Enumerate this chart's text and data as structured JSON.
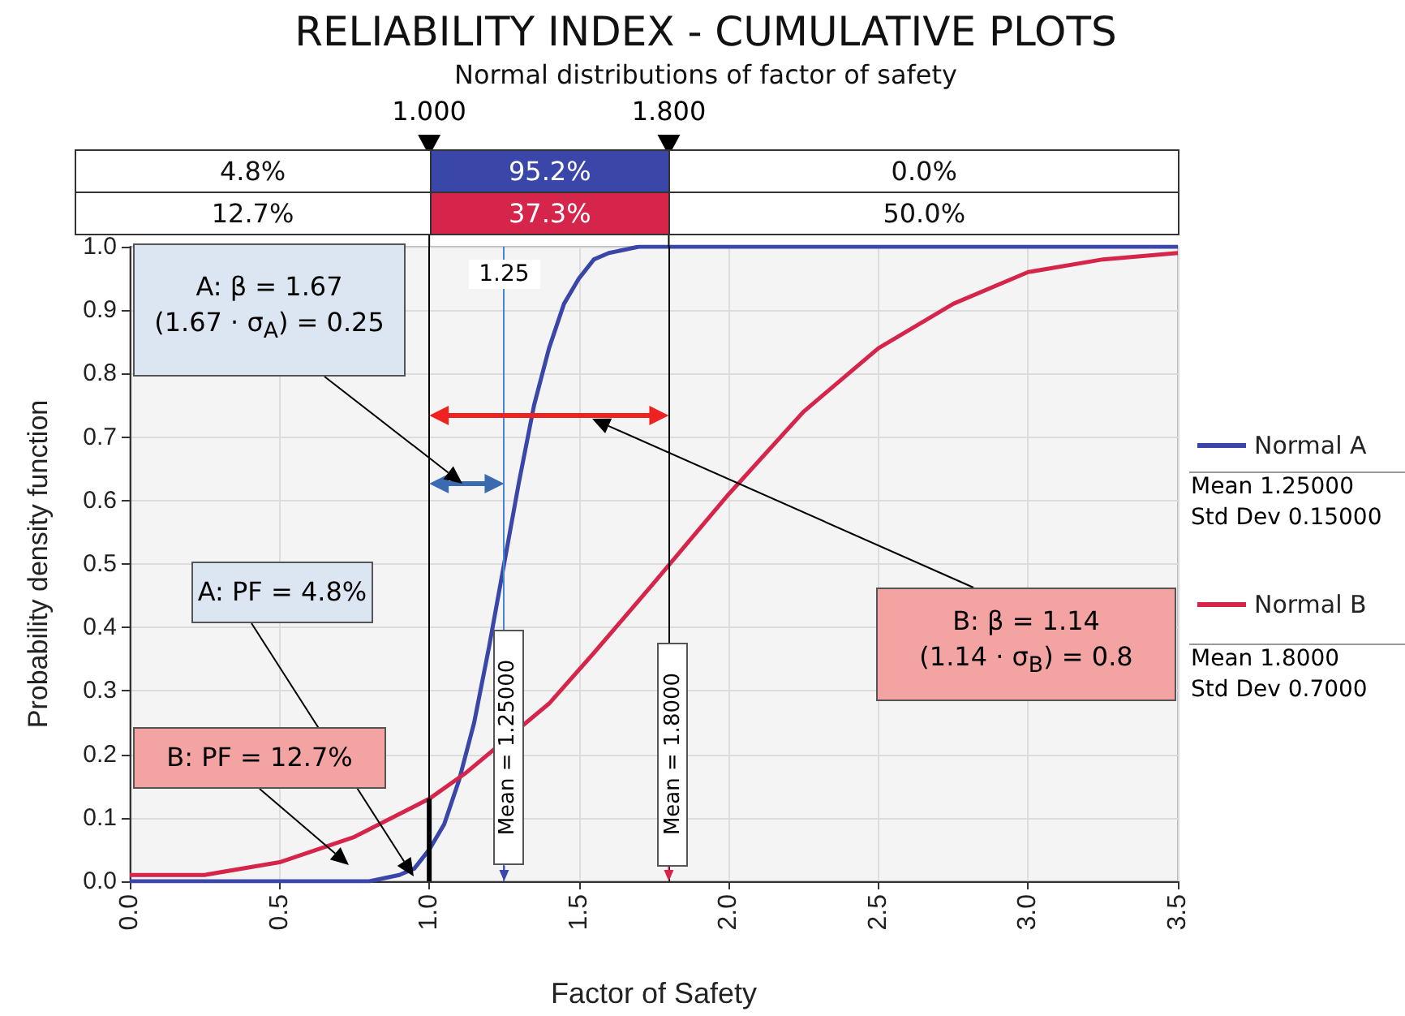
{
  "chart_data": {
    "type": "line",
    "title": "RELIABILITY INDEX - CUMULATIVE PLOTS",
    "subtitle": "Normal distributions of factor of safety",
    "xlabel": "Factor of Safety",
    "ylabel": "Probability density function",
    "xlim": [
      0,
      3.5
    ],
    "xticks": [
      {
        "value": 0,
        "label": "0.0"
      },
      0.5,
      {
        "value": 1,
        "label": "1.0"
      },
      1.5,
      {
        "value": 2,
        "label": "2.0"
      },
      2.5,
      {
        "value": 3,
        "label": "3.0"
      },
      3.5
    ],
    "ylim": [
      0,
      1
    ],
    "yticks": [
      {
        "value": 0,
        "label": "0.0"
      },
      0.1,
      0.2,
      0.3,
      0.4,
      0.5,
      0.6,
      0.7,
      0.8,
      0.9,
      {
        "value": 1,
        "label": "1.0"
      }
    ],
    "grid": true,
    "legend": "right",
    "marker": "none",
    "series": [
      {
        "name": "Normal A",
        "color": "#3a47a8",
        "x": [
          0,
          0.7,
          0.8,
          0.9,
          0.95,
          1.0,
          1.05,
          1.1,
          1.15,
          1.2,
          1.25,
          1.3,
          1.35,
          1.4,
          1.45,
          1.5,
          1.55,
          1.6,
          1.7,
          1.8,
          3.5
        ],
        "values": [
          0,
          0,
          0,
          0.01,
          0.02,
          0.05,
          0.09,
          0.16,
          0.25,
          0.37,
          0.5,
          0.63,
          0.75,
          0.84,
          0.91,
          0.95,
          0.98,
          0.99,
          1.0,
          1.0,
          1.0
        ]
      },
      {
        "name": "Normal B",
        "color": "#d6254a",
        "x": [
          0,
          0.25,
          0.5,
          0.75,
          1.0,
          1.12,
          1.4,
          1.55,
          1.75,
          2.0,
          2.25,
          2.5,
          2.75,
          3.0,
          3.25,
          3.5
        ],
        "values": [
          0.01,
          0.01,
          0.03,
          0.07,
          0.13,
          0.17,
          0.28,
          0.36,
          0.47,
          0.61,
          0.74,
          0.84,
          0.91,
          0.96,
          0.98,
          0.99
        ]
      },
      {
        "color": "#000000",
        "x": [
          1.0,
          1.0
        ],
        "values": [
          0,
          0.13
        ]
      }
    ],
    "ref_lines": [
      {
        "axis": "x",
        "value": 1.0,
        "label": "1.000",
        "color": "#000000"
      },
      {
        "axis": "x",
        "value": 1.8,
        "label": "1.800",
        "color": "#000000"
      },
      {
        "axis": "x",
        "value": 1.25,
        "label": "1.25",
        "color": "#4a86d0"
      }
    ],
    "annotations": [
      "4.8%",
      "95.2%",
      "0.0%",
      "12.7%",
      "37.3%",
      "50.0%",
      "Mean 1.25000",
      "Std Dev 0.15000",
      "Mean 1.8000",
      "Std Dev 0.7000",
      {
        "text": "Mean = 1.25000",
        "x": 1.25,
        "y": 0.21
      },
      {
        "text": "Mean = 1.8000",
        "x": 1.8,
        "y": 0.2
      },
      "A: β = 1.67\n(1.67 · σ$_{A}$) = 0.25",
      "B: β = 1.14\n(1.14 · σ$_{B}$) = 0.8",
      "A: PF = 4.8%",
      "B: PF = 12.7%"
    ]
  }
}
